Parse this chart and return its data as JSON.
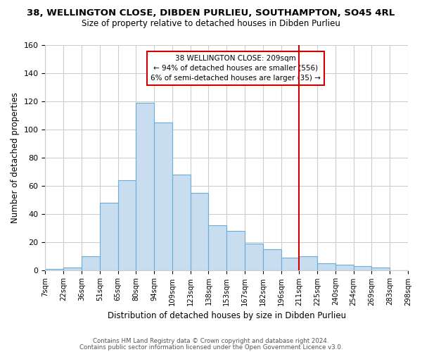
{
  "title": "38, WELLINGTON CLOSE, DIBDEN PURLIEU, SOUTHAMPTON, SO45 4RL",
  "subtitle": "Size of property relative to detached houses in Dibden Purlieu",
  "xlabel": "Distribution of detached houses by size in Dibden Purlieu",
  "ylabel": "Number of detached properties",
  "tick_labels": [
    "7sqm",
    "22sqm",
    "36sqm",
    "51sqm",
    "65sqm",
    "80sqm",
    "94sqm",
    "109sqm",
    "123sqm",
    "138sqm",
    "153sqm",
    "167sqm",
    "182sqm",
    "196sqm",
    "211sqm",
    "225sqm",
    "240sqm",
    "254sqm",
    "269sqm",
    "283sqm",
    "298sqm"
  ],
  "bar_heights": [
    1,
    2,
    10,
    48,
    64,
    119,
    105,
    68,
    55,
    32,
    28,
    19,
    15,
    9,
    10,
    5,
    4,
    3,
    2,
    0
  ],
  "bar_color": "#c9ddf0",
  "bar_edge_color": "#6aaed6",
  "vline_color": "#cc0000",
  "annotation_line1": "38 WELLINGTON CLOSE: 209sqm",
  "annotation_line2": "← 94% of detached houses are smaller (556)",
  "annotation_line3": "6% of semi-detached houses are larger (35) →",
  "annotation_box_color": "#ffffff",
  "annotation_box_edge": "#cc0000",
  "ylim": [
    0,
    160
  ],
  "yticks": [
    0,
    20,
    40,
    60,
    80,
    100,
    120,
    140,
    160
  ],
  "footer1": "Contains HM Land Registry data © Crown copyright and database right 2024.",
  "footer2": "Contains public sector information licensed under the Open Government Licence v3.0.",
  "bg_color": "#ffffff",
  "grid_color": "#cccccc"
}
